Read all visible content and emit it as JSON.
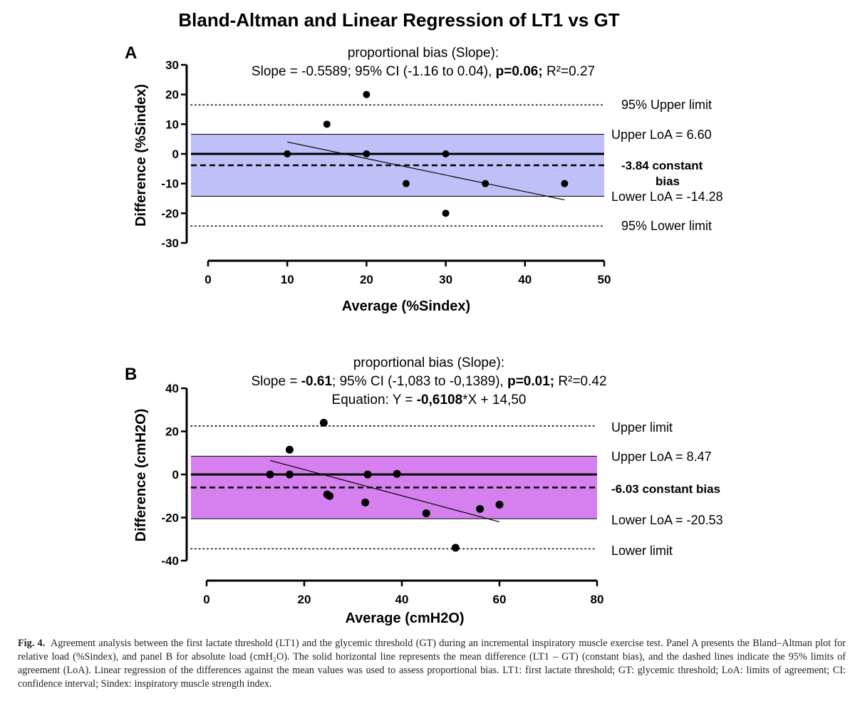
{
  "figure_title": "Bland-Altman and Linear Regression of LT1 vs GT",
  "caption": {
    "label": "Fig. 4.",
    "text": "Agreement analysis between the first lactate threshold (LT1) and the glycemic threshold (GT) during an incremental inspiratory muscle exercise test. Panel A presents the Bland–Altman plot for relative load (%Sindex), and panel B for absolute load (cmH₂O). The solid horizontal line represents the mean difference (LT1 – GT) (constant bias), and the dashed lines indicate the 95% limits of agreement (LoA). Linear regression of the differences against the mean values was used to assess proportional bias. LT1: first lactate threshold; GT: glycemic threshold; LoA: limits of agreement; CI: confidence interval; Sindex: inspiratory muscle strength index."
  },
  "chart_data": [
    {
      "panel": "A",
      "type": "scatter",
      "title_line1": "proportional bias (Slope):",
      "title_line2_a": "Slope = -0.5589; 95% CI (-1.16 to 0.04), ",
      "title_line2_b": "p=0.06;",
      "title_line2_c": " R²=0.27",
      "xlabel": "Average (%Sindex)",
      "ylabel": "Difference (%Sindex)",
      "xlim": [
        0,
        50
      ],
      "ylim": [
        -30,
        30
      ],
      "xticks": [
        0,
        10,
        20,
        30,
        40,
        50
      ],
      "yticks": [
        30,
        20,
        10,
        0,
        -10,
        -20,
        -30
      ],
      "band_color": "#c0c0f8",
      "points": [
        {
          "x": 10,
          "y": 0
        },
        {
          "x": 15,
          "y": 10
        },
        {
          "x": 20,
          "y": 20
        },
        {
          "x": 20,
          "y": 0
        },
        {
          "x": 25,
          "y": -10
        },
        {
          "x": 30,
          "y": 0
        },
        {
          "x": 30,
          "y": -20
        },
        {
          "x": 35,
          "y": -10
        },
        {
          "x": 45,
          "y": -10
        }
      ],
      "regression": {
        "x1": 10,
        "y1": 4,
        "x2": 45,
        "y2": -15.5
      },
      "zero_line": 0,
      "bias": -3.84,
      "upper_loa": 6.6,
      "lower_loa": -14.28,
      "upper_limit": 16.5,
      "lower_limit": -24.3,
      "labels": {
        "upper_limit": "95% Upper limit",
        "upper_loa": "Upper LoA = 6.60",
        "bias_line1": "-3.84 constant",
        "bias_line2": "bias",
        "lower_loa": "Lower LoA = -14.28",
        "lower_limit": "95% Lower limit"
      }
    },
    {
      "panel": "B",
      "type": "scatter",
      "title_line1": "proportional bias (Slope):",
      "title_line2_a": "Slope = ",
      "title_line2_b": "-0.61",
      "title_line2_c": "; 95% CI (-1,083 to -0,1389), ",
      "title_line2_d": "p=0.01;",
      "title_line2_e": " R²=0.42",
      "title_line3_a": "Equation: Y = ",
      "title_line3_b": "-0,6108",
      "title_line3_c": "*X + 14,50",
      "xlabel": "Average (cmH2O)",
      "ylabel": "Difference (cmH2O)",
      "xlim": [
        0,
        80
      ],
      "ylim": [
        -40,
        40
      ],
      "xticks": [
        0,
        20,
        40,
        60,
        80
      ],
      "yticks": [
        40,
        20,
        0,
        -20,
        -40
      ],
      "band_color": "#d580ee",
      "points": [
        {
          "x": 13,
          "y": 0
        },
        {
          "x": 17,
          "y": 0
        },
        {
          "x": 17,
          "y": 11.5
        },
        {
          "x": 24,
          "y": 24
        },
        {
          "x": 24.7,
          "y": -9.3
        },
        {
          "x": 25.2,
          "y": -10
        },
        {
          "x": 32.5,
          "y": -13
        },
        {
          "x": 33,
          "y": 0
        },
        {
          "x": 39,
          "y": 0.3
        },
        {
          "x": 45,
          "y": -18
        },
        {
          "x": 51,
          "y": -34
        },
        {
          "x": 56,
          "y": -16
        },
        {
          "x": 60,
          "y": -14
        }
      ],
      "regression": {
        "x1": 13,
        "y1": 6.5,
        "x2": 60,
        "y2": -22
      },
      "zero_line": 0,
      "bias": -6.03,
      "upper_loa": 8.47,
      "lower_loa": -20.53,
      "upper_limit": 22.5,
      "lower_limit": -34.5,
      "labels": {
        "upper_limit": "Upper limit",
        "upper_loa": "Upper LoA = 8.47",
        "bias": "-6.03 constant bias",
        "lower_loa": "Lower LoA = -20.53",
        "lower_limit": "Lower limit"
      }
    }
  ]
}
